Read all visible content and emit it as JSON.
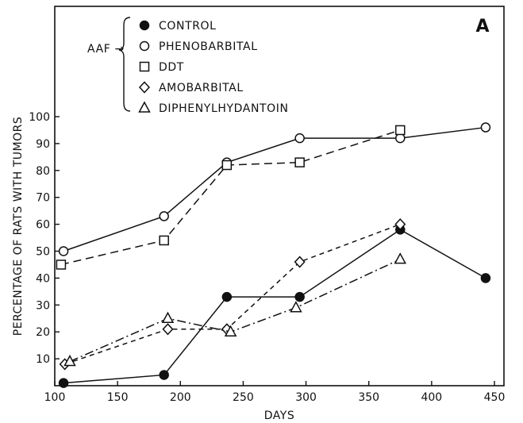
{
  "chart_data": {
    "type": "line",
    "panel_label": "A",
    "xlabel": "DAYS",
    "ylabel": "PERCENTAGE OF RATS WITH TUMORS",
    "xlim": [
      100,
      450
    ],
    "ylim": [
      0,
      100
    ],
    "x_ticks": [
      100,
      150,
      200,
      250,
      300,
      350,
      400,
      450
    ],
    "y_ticks": [
      10,
      20,
      30,
      40,
      50,
      60,
      70,
      80,
      90,
      100
    ],
    "legend_group_label": "AAF →",
    "legend_position": "top-left",
    "series": [
      {
        "name": "CONTROL",
        "marker": "filled-circle",
        "dash": "solid",
        "x": [
          107,
          187,
          237,
          295,
          375,
          443
        ],
        "y": [
          1,
          4,
          33,
          33,
          58,
          40
        ]
      },
      {
        "name": "PHENOBARBITAL",
        "marker": "open-circle",
        "dash": "solid",
        "x": [
          107,
          187,
          237,
          295,
          375,
          443
        ],
        "y": [
          50,
          63,
          83,
          92,
          92,
          96
        ]
      },
      {
        "name": "DDT",
        "marker": "open-square",
        "dash": "dashed",
        "x": [
          105,
          187,
          237,
          295,
          375
        ],
        "y": [
          45,
          54,
          82,
          83,
          95
        ]
      },
      {
        "name": "AMOBARBITAL",
        "marker": "open-diamond",
        "dash": "short-dashed",
        "x": [
          108,
          190,
          237,
          295,
          375
        ],
        "y": [
          8,
          21,
          21,
          46,
          60
        ]
      },
      {
        "name": "DIPHENYLHYDANTOIN",
        "marker": "open-triangle",
        "dash": "dash-dot",
        "x": [
          112,
          190,
          240,
          292,
          375
        ],
        "y": [
          9,
          25,
          20,
          29,
          47
        ]
      }
    ]
  }
}
